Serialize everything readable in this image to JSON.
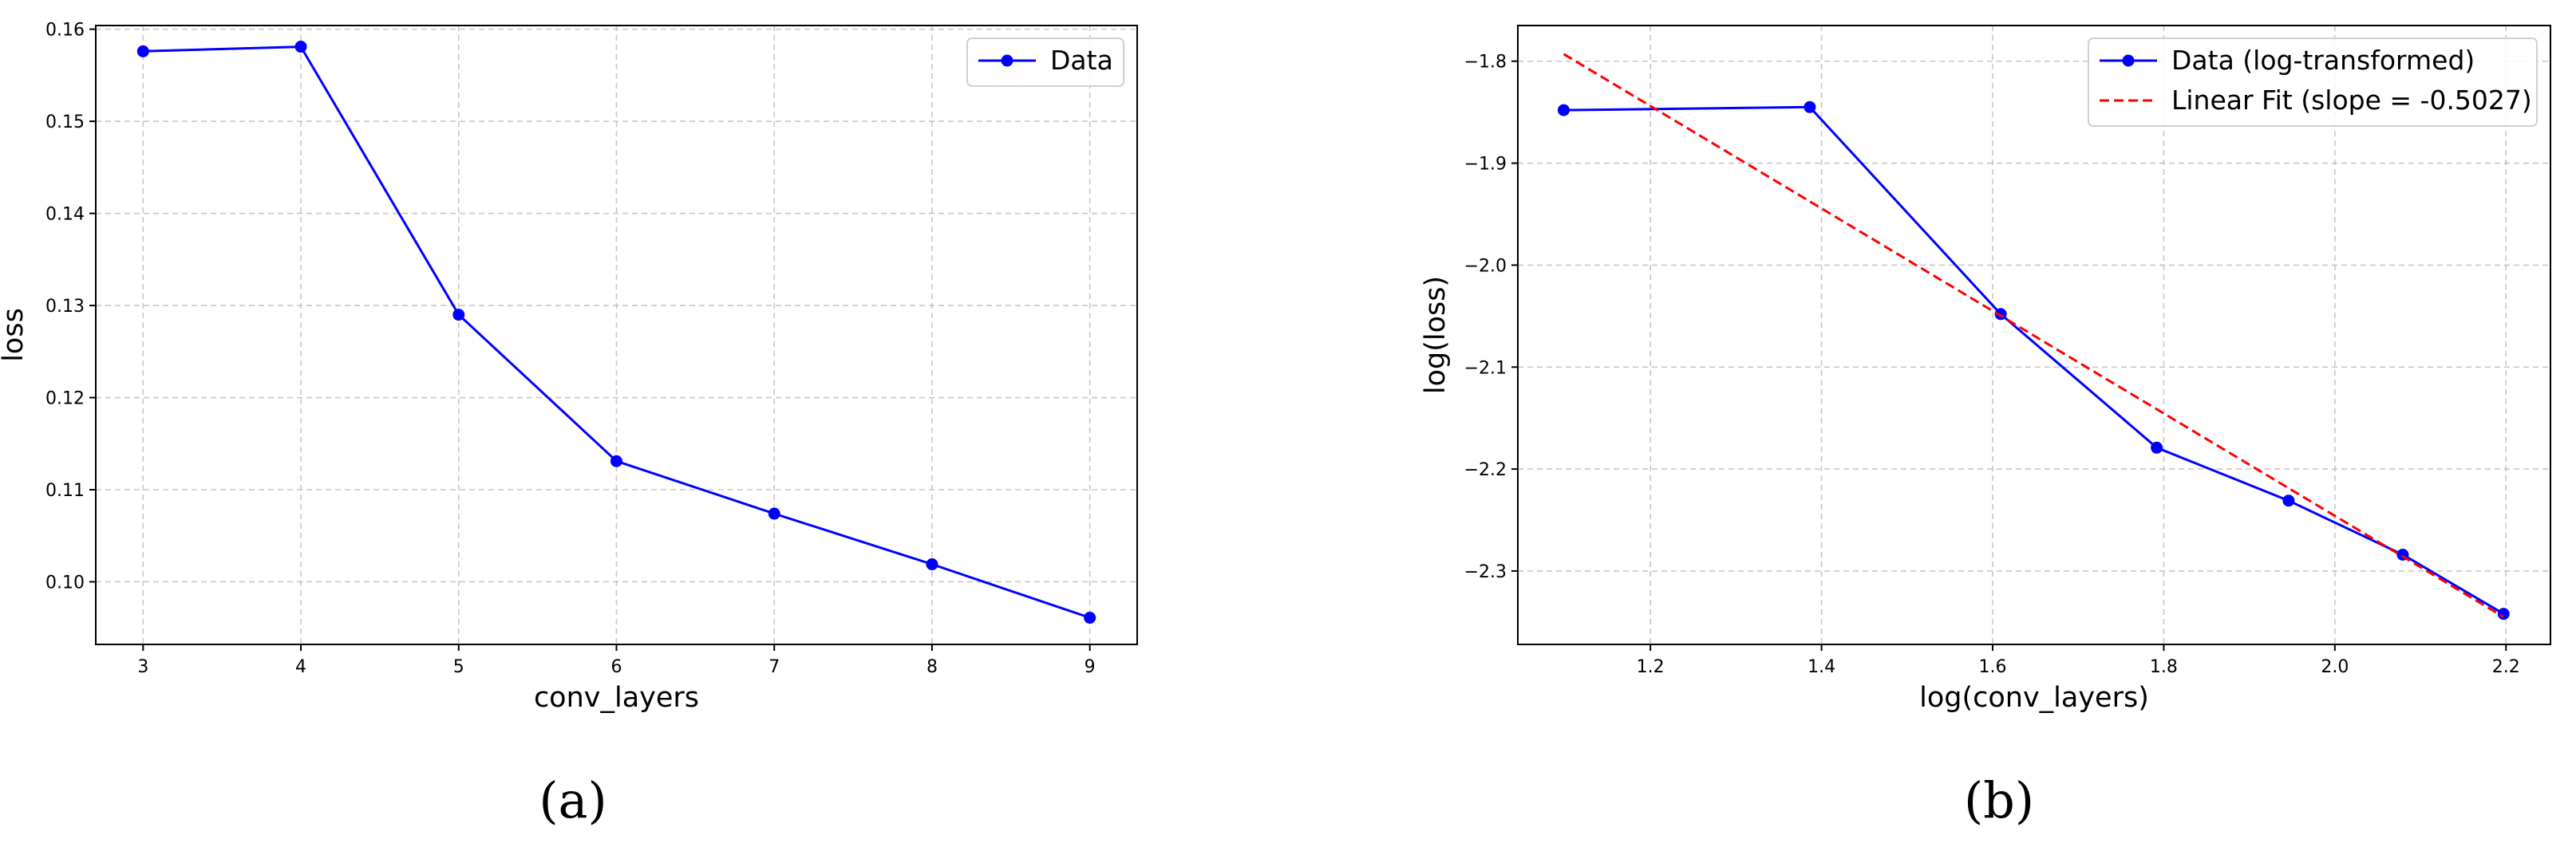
{
  "chart_data": [
    {
      "type": "line",
      "caption": "(a)",
      "xlabel": "conv_layers",
      "ylabel": "loss",
      "xlim": [
        2.7,
        9.3
      ],
      "ylim": [
        0.0932,
        0.1604
      ],
      "xticks": [
        3,
        4,
        5,
        6,
        7,
        8,
        9
      ],
      "xtick_labels": [
        "3",
        "4",
        "5",
        "6",
        "7",
        "8",
        "9"
      ],
      "yticks": [
        0.1,
        0.11,
        0.12,
        0.13,
        0.14,
        0.15,
        0.16
      ],
      "ytick_labels": [
        "0.10",
        "0.11",
        "0.12",
        "0.13",
        "0.14",
        "0.15",
        "0.16"
      ],
      "grid": true,
      "legend_position": "top-right",
      "series": [
        {
          "name": "Data",
          "style": "solid-marker",
          "color": "#0000ff",
          "x": [
            3,
            4,
            5,
            6,
            7,
            8,
            9
          ],
          "y": [
            0.1576,
            0.1581,
            0.129,
            0.1131,
            0.1074,
            0.1019,
            0.0961
          ]
        }
      ]
    },
    {
      "type": "line",
      "caption": "(b)",
      "xlabel": "log(conv_layers)",
      "ylabel": "log(loss)",
      "xlim": [
        1.045,
        2.252
      ],
      "ylim": [
        -2.372,
        -1.765
      ],
      "xticks": [
        1.2,
        1.4,
        1.6,
        1.8,
        2.0,
        2.2
      ],
      "xtick_labels": [
        "1.2",
        "1.4",
        "1.6",
        "1.8",
        "2.0",
        "2.2"
      ],
      "yticks": [
        -1.8,
        -1.9,
        -2.0,
        -2.1,
        -2.2,
        -2.3
      ],
      "ytick_labels": [
        "−1.8",
        "−1.9",
        "−2.0",
        "−2.1",
        "−2.2",
        "−2.3"
      ],
      "grid": true,
      "legend_position": "top-right",
      "series": [
        {
          "name": "Data (log-transformed)",
          "style": "solid-marker",
          "color": "#0000ff",
          "x": [
            1.0986,
            1.3863,
            1.6094,
            1.7918,
            1.9459,
            2.0794,
            2.1972
          ],
          "y": [
            -1.848,
            -1.845,
            -2.048,
            -2.179,
            -2.231,
            -2.284,
            -2.342
          ]
        },
        {
          "name": "Linear Fit (slope = -0.5027)",
          "style": "dashed",
          "color": "#ff0000",
          "x": [
            1.0986,
            2.1972
          ],
          "y": [
            -1.793,
            -2.345
          ]
        }
      ]
    }
  ]
}
